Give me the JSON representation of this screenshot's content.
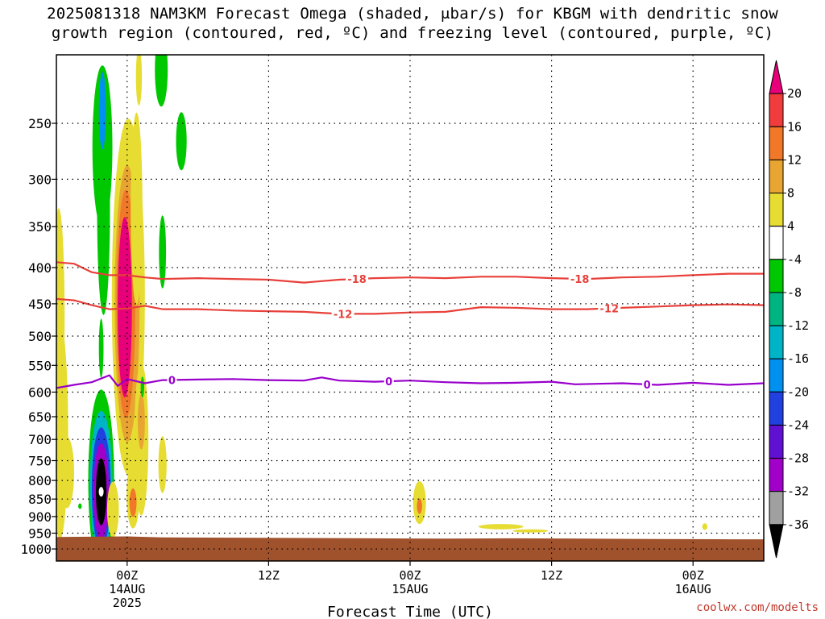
{
  "title_line1": "2025081318 NAM3KM Forecast Omega (shaded, μbar/s) for KBGM with dendritic snow",
  "title_line2": "growth region (contoured, red, ºC) and freezing level (contoured, purple, ºC)",
  "credit": "coolwx.com/modelts",
  "colors": {
    "dgz_contour": "#e8403a",
    "freezing_contour": "#9900cc",
    "terrain": "#a0522d",
    "grid": "#000000"
  },
  "chart_data": {
    "type": "heatmap",
    "title": "2025081318 NAM3KM Forecast Omega (shaded, μbar/s) for KBGM with dendritic snow growth region (contoured, red, ºC) and freezing level (contoured, purple, ºC)",
    "xlabel": "Forecast Time (UTC)",
    "ylabel": "",
    "x_unit": "hours since 2025-08-13 18Z",
    "xlim": [
      0,
      60
    ],
    "y_scale": "log-pressure",
    "ylim": [
      1040,
      200
    ],
    "y_ticks": [
      250,
      300,
      350,
      400,
      450,
      500,
      550,
      600,
      650,
      700,
      750,
      800,
      850,
      900,
      950,
      1000
    ],
    "x_ticks": [
      {
        "hour": 6,
        "lines": [
          "00Z",
          "14AUG",
          "2025"
        ]
      },
      {
        "hour": 18,
        "lines": [
          "12Z"
        ]
      },
      {
        "hour": 30,
        "lines": [
          "00Z",
          "15AUG"
        ]
      },
      {
        "hour": 42,
        "lines": [
          "12Z"
        ]
      },
      {
        "hour": 54,
        "lines": [
          "00Z",
          "16AUG"
        ]
      }
    ],
    "grid": true,
    "colorbar": {
      "label_ticks": [
        20,
        16,
        12,
        8,
        4,
        -4,
        -8,
        -12,
        -16,
        -20,
        -24,
        -28,
        -32,
        -36
      ],
      "bins": [
        {
          "lo": 20,
          "hi": null,
          "color": "#e8007a"
        },
        {
          "lo": 16,
          "hi": 20,
          "color": "#f03c3c"
        },
        {
          "lo": 12,
          "hi": 16,
          "color": "#f07828"
        },
        {
          "lo": 8,
          "hi": 12,
          "color": "#e8a532"
        },
        {
          "lo": 4,
          "hi": 8,
          "color": "#e6dc32"
        },
        {
          "lo": -4,
          "hi": 4,
          "color": "#ffffff"
        },
        {
          "lo": -8,
          "hi": -4,
          "color": "#00c800"
        },
        {
          "lo": -12,
          "hi": -8,
          "color": "#00b482"
        },
        {
          "lo": -16,
          "hi": -12,
          "color": "#00b4c8"
        },
        {
          "lo": -20,
          "hi": -16,
          "color": "#0090f0"
        },
        {
          "lo": -24,
          "hi": -20,
          "color": "#2040e0"
        },
        {
          "lo": -28,
          "hi": -24,
          "color": "#6010d0"
        },
        {
          "lo": -32,
          "hi": -28,
          "color": "#a000c8"
        },
        {
          "lo": -36,
          "hi": -32,
          "color": "#a0a0a0"
        },
        {
          "lo": null,
          "hi": -36,
          "color": "#000000"
        }
      ]
    },
    "omega_cells": [
      {
        "hour": 0.3,
        "p": 680,
        "omega": 5,
        "dx": 0.7,
        "dy": 230
      },
      {
        "hour": 0.2,
        "p": 470,
        "omega": 5,
        "dx": 0.5,
        "dy": 160
      },
      {
        "hour": 0.9,
        "p": 780,
        "omega": 5,
        "dx": 0.6,
        "dy": 90
      },
      {
        "hour": 3.8,
        "p": 830,
        "omega": -40,
        "dx": 0.45,
        "dy": 90
      },
      {
        "hour": 3.8,
        "p": 830,
        "omega": -30,
        "dx": 0.65,
        "dy": 130
      },
      {
        "hour": 3.8,
        "p": 820,
        "omega": -22,
        "dx": 0.8,
        "dy": 160
      },
      {
        "hour": 3.8,
        "p": 810,
        "omega": -14,
        "dx": 0.95,
        "dy": 190
      },
      {
        "hour": 3.8,
        "p": 800,
        "omega": -6,
        "dx": 1.1,
        "dy": 230
      },
      {
        "hour": 3.9,
        "p": 240,
        "omega": -20,
        "dx": 0.3,
        "dy": 30
      },
      {
        "hour": 3.9,
        "p": 270,
        "omega": -6,
        "dx": 0.85,
        "dy": 70
      },
      {
        "hour": 4.0,
        "p": 330,
        "omega": -6,
        "dx": 0.55,
        "dy": 110
      },
      {
        "hour": 3.8,
        "p": 520,
        "omega": -6,
        "dx": 0.2,
        "dy": 50
      },
      {
        "hour": 2.0,
        "p": 870,
        "omega": -6,
        "dx": 0.15,
        "dy": 8
      },
      {
        "hour": 6.1,
        "p": 440,
        "omega": 5,
        "dx": 1.4,
        "dy": 230
      },
      {
        "hour": 6.0,
        "p": 450,
        "omega": 10,
        "dx": 1.05,
        "dy": 190
      },
      {
        "hour": 5.9,
        "p": 450,
        "omega": 14,
        "dx": 0.8,
        "dy": 160
      },
      {
        "hour": 5.8,
        "p": 455,
        "omega": 24,
        "dx": 0.6,
        "dy": 130
      },
      {
        "hour": 7.2,
        "p": 700,
        "omega": 5,
        "dx": 0.6,
        "dy": 170
      },
      {
        "hour": 7.2,
        "p": 660,
        "omega": 10,
        "dx": 0.3,
        "dy": 60
      },
      {
        "hour": 6.8,
        "p": 330,
        "omega": 5,
        "dx": 0.5,
        "dy": 100
      },
      {
        "hour": 6.5,
        "p": 840,
        "omega": 5,
        "dx": 0.55,
        "dy": 90
      },
      {
        "hour": 6.5,
        "p": 860,
        "omega": 12,
        "dx": 0.3,
        "dy": 40
      },
      {
        "hour": 4.8,
        "p": 880,
        "omega": 5,
        "dx": 0.5,
        "dy": 80
      },
      {
        "hour": 9.0,
        "p": 760,
        "omega": 5,
        "dx": 0.35,
        "dy": 70
      },
      {
        "hour": 9.0,
        "p": 380,
        "omega": -6,
        "dx": 0.3,
        "dy": 45
      },
      {
        "hour": 7.3,
        "p": 590,
        "omega": -6,
        "dx": 0.15,
        "dy": 20
      },
      {
        "hour": 8.9,
        "p": 210,
        "omega": -6,
        "dx": 0.55,
        "dy": 25
      },
      {
        "hour": 10.6,
        "p": 265,
        "omega": -6,
        "dx": 0.45,
        "dy": 25
      },
      {
        "hour": 7.0,
        "p": 215,
        "omega": 5,
        "dx": 0.25,
        "dy": 20
      },
      {
        "hour": 30.8,
        "p": 860,
        "omega": 5,
        "dx": 0.55,
        "dy": 60
      },
      {
        "hour": 30.8,
        "p": 870,
        "omega": 12,
        "dx": 0.22,
        "dy": 22
      },
      {
        "hour": 37.7,
        "p": 930,
        "omega": 5,
        "dx": 1.9,
        "dy": 8
      },
      {
        "hour": 40.2,
        "p": 943,
        "omega": 5,
        "dx": 1.5,
        "dy": 5
      },
      {
        "hour": 55.0,
        "p": 930,
        "omega": 5,
        "dx": 0.22,
        "dy": 10
      }
    ],
    "dgz_contours": [
      {
        "value": -18,
        "points": [
          [
            0,
            393
          ],
          [
            1.5,
            395
          ],
          [
            3,
            406
          ],
          [
            4.5,
            410
          ],
          [
            6,
            410
          ],
          [
            7.5,
            413
          ],
          [
            9,
            415
          ],
          [
            12,
            414
          ],
          [
            15,
            415
          ],
          [
            18,
            416
          ],
          [
            21,
            420
          ],
          [
            24,
            416
          ],
          [
            27,
            414
          ],
          [
            30,
            413
          ],
          [
            33,
            414
          ],
          [
            36,
            412
          ],
          [
            39,
            412
          ],
          [
            42,
            414
          ],
          [
            45,
            415
          ],
          [
            48,
            413
          ],
          [
            51,
            412
          ],
          [
            54,
            410
          ],
          [
            57,
            408
          ],
          [
            60,
            408
          ]
        ],
        "labels": [
          {
            "hour": 25.5
          },
          {
            "hour": 44.4
          }
        ]
      },
      {
        "value": -12,
        "points": [
          [
            0,
            443
          ],
          [
            1.5,
            445
          ],
          [
            3,
            452
          ],
          [
            4.5,
            458
          ],
          [
            6,
            457
          ],
          [
            7.5,
            453
          ],
          [
            9,
            458
          ],
          [
            12,
            458
          ],
          [
            15,
            460
          ],
          [
            18,
            461
          ],
          [
            21,
            462
          ],
          [
            24,
            465
          ],
          [
            27,
            465
          ],
          [
            30,
            463
          ],
          [
            33,
            462
          ],
          [
            36,
            455
          ],
          [
            39,
            456
          ],
          [
            42,
            458
          ],
          [
            45,
            458
          ],
          [
            48,
            456
          ],
          [
            51,
            454
          ],
          [
            54,
            452
          ],
          [
            57,
            451
          ],
          [
            60,
            452
          ]
        ],
        "labels": [
          {
            "hour": 24.3
          },
          {
            "hour": 46.9
          }
        ]
      }
    ],
    "freezing_contours": [
      {
        "value": 0,
        "points": [
          [
            0,
            592
          ],
          [
            1.5,
            586
          ],
          [
            3,
            581
          ],
          [
            4.5,
            568
          ],
          [
            5.2,
            588
          ],
          [
            6,
            575
          ],
          [
            7.5,
            583
          ],
          [
            9,
            577
          ],
          [
            12,
            576
          ],
          [
            15,
            575
          ],
          [
            18,
            577
          ],
          [
            21,
            578
          ],
          [
            22.5,
            572
          ],
          [
            24,
            578
          ],
          [
            27,
            580
          ],
          [
            30,
            578
          ],
          [
            33,
            581
          ],
          [
            36,
            583
          ],
          [
            39,
            582
          ],
          [
            42,
            580
          ],
          [
            44,
            585
          ],
          [
            48,
            583
          ],
          [
            51,
            586
          ],
          [
            54,
            582
          ],
          [
            57,
            586
          ],
          [
            60,
            583
          ]
        ],
        "labels": [
          {
            "hour": 9.8
          },
          {
            "hour": 28.2
          },
          {
            "hour": 50.1
          }
        ]
      }
    ],
    "terrain": {
      "points": [
        [
          0,
          962
        ],
        [
          6,
          960
        ],
        [
          9,
          963
        ],
        [
          15,
          964
        ],
        [
          21,
          965
        ],
        [
          27,
          966
        ],
        [
          33,
          967
        ],
        [
          39,
          966
        ],
        [
          45,
          967
        ],
        [
          51,
          968
        ],
        [
          57,
          969
        ],
        [
          60,
          969
        ]
      ],
      "bottom_p": 1040
    }
  }
}
